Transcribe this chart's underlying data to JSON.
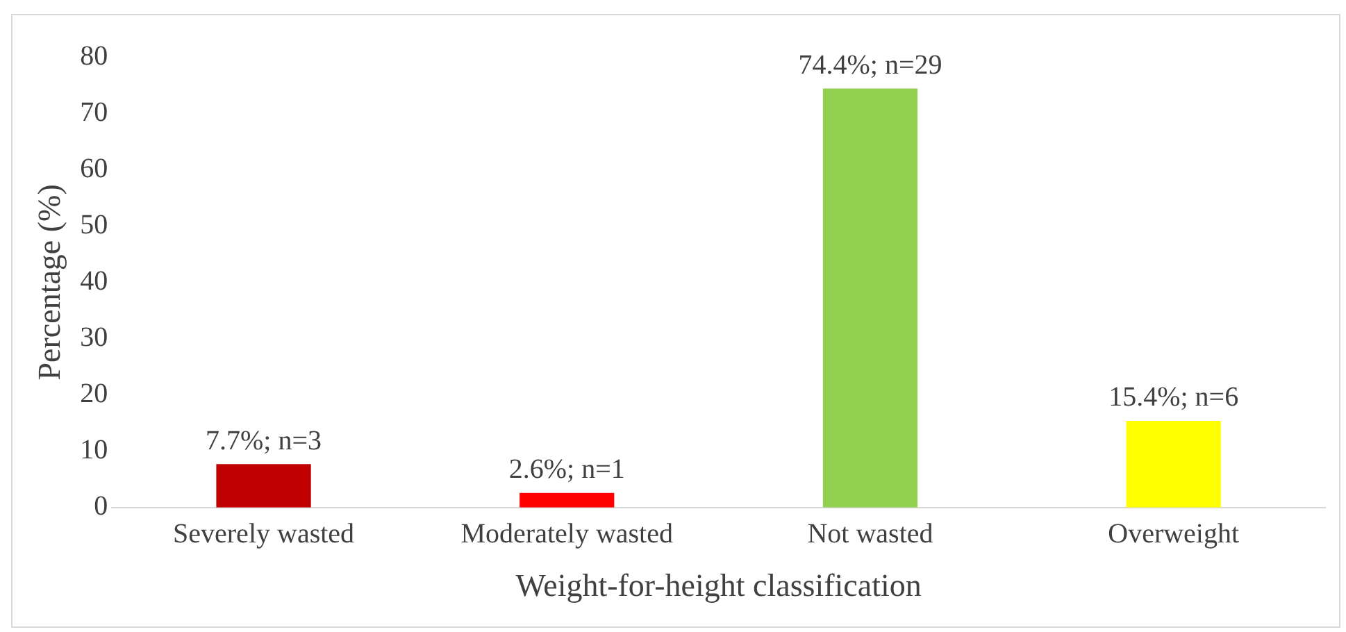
{
  "chart_data": {
    "type": "bar",
    "xlabel": "Weight-for-height classification",
    "ylabel": "Percentage (%)",
    "categories": [
      "Severely wasted",
      "Moderately wasted",
      "Not wasted",
      "Overweight"
    ],
    "values": [
      7.7,
      2.6,
      74.4,
      15.4
    ],
    "colors": [
      "#c00000",
      "#ff0000",
      "#92d050",
      "#ffff00"
    ],
    "value_labels": [
      "7.7%; n=3",
      "2.6%; n=1",
      "74.4%; n=29",
      "15.4%; n=6"
    ],
    "ylim": [
      0,
      80
    ],
    "yticks": [
      0,
      10,
      20,
      30,
      40,
      50,
      60,
      70,
      80
    ],
    "grid": false,
    "legend": false
  }
}
